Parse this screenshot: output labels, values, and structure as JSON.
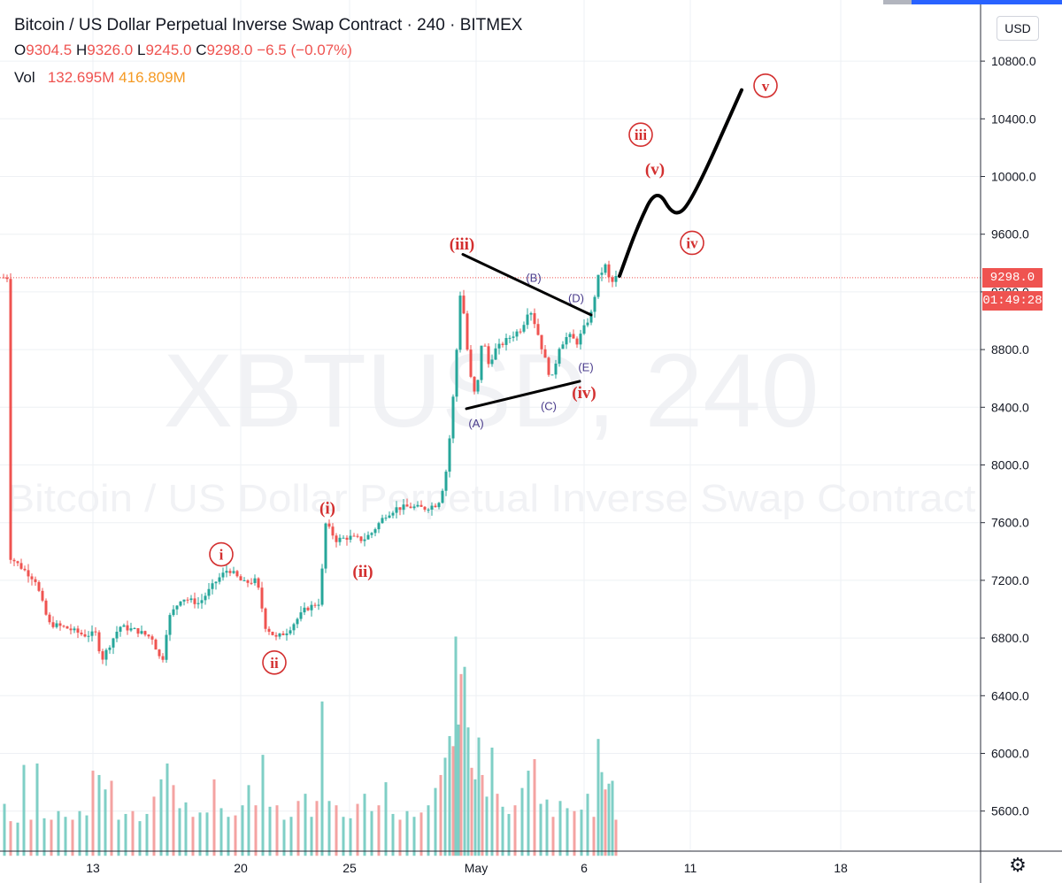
{
  "legend": {
    "title": "Bitcoin / US Dollar Perpetual Inverse Swap Contract · 240 · BITMEX",
    "o_label": "O",
    "o": "9304.5",
    "h_label": "H",
    "h": "9326.0",
    "l_label": "L",
    "l": "9245.0",
    "c_label": "C",
    "c": "9298.0",
    "change": "−6.5 (−0.07%)",
    "vol_label": "Vol",
    "vol": "132.695M",
    "vol_ma": "416.809M"
  },
  "currency_button": "USD",
  "last_price_tag": "9298.0",
  "countdown_tag": "01:49:28",
  "settings_icon": "gear-icon",
  "watermarks": {
    "symbol": "XBTUSD, 240",
    "description": "Bitcoin / US Dollar Perpetual Inverse Swap Contract"
  },
  "chart_data": {
    "type": "candlestick",
    "ylim": [
      5250,
      11000
    ],
    "y_ticks": [
      5600,
      6000,
      6400,
      6800,
      7200,
      7600,
      8000,
      8400,
      8800,
      9200,
      9600,
      10000,
      10400,
      10800
    ],
    "x_ticks": [
      "13",
      "20",
      "25",
      "May",
      "6",
      "11",
      "18"
    ],
    "colors": {
      "up": "#26a69a",
      "down": "#ef5350",
      "vol_up": "#7fcfc6",
      "vol_down": "#f4a3a2",
      "drawing": "#000000",
      "wave": "#d32f2f",
      "abcde": "#4a3c8c",
      "grid": "#eef0f4"
    },
    "last_price": 9298.0,
    "price_path": [
      [
        10,
        7370
      ],
      [
        40,
        7200
      ],
      [
        55,
        6900
      ],
      [
        75,
        6870
      ],
      [
        95,
        6820
      ],
      [
        108,
        6830
      ],
      [
        115,
        6650
      ],
      [
        135,
        6880
      ],
      [
        155,
        6850
      ],
      [
        172,
        6800
      ],
      [
        183,
        6620
      ],
      [
        190,
        6930
      ],
      [
        205,
        7080
      ],
      [
        225,
        7040
      ],
      [
        245,
        7200
      ],
      [
        258,
        7280
      ],
      [
        275,
        7180
      ],
      [
        290,
        7200
      ],
      [
        300,
        6880
      ],
      [
        312,
        6800
      ],
      [
        325,
        6850
      ],
      [
        345,
        7000
      ],
      [
        362,
        7050
      ],
      [
        367,
        7600
      ],
      [
        380,
        7480
      ],
      [
        395,
        7500
      ],
      [
        410,
        7480
      ],
      [
        420,
        7530
      ],
      [
        435,
        7650
      ],
      [
        448,
        7700
      ],
      [
        462,
        7710
      ],
      [
        480,
        7700
      ],
      [
        495,
        7730
      ],
      [
        503,
        7900
      ],
      [
        510,
        8300
      ],
      [
        516,
        8800
      ],
      [
        521,
        9280
      ],
      [
        526,
        8900
      ],
      [
        532,
        8600
      ],
      [
        538,
        8450
      ],
      [
        545,
        8900
      ],
      [
        552,
        8700
      ],
      [
        560,
        8800
      ],
      [
        575,
        8880
      ],
      [
        590,
        8950
      ],
      [
        598,
        9100
      ],
      [
        606,
        8950
      ],
      [
        615,
        8750
      ],
      [
        623,
        8580
      ],
      [
        632,
        8820
      ],
      [
        642,
        8900
      ],
      [
        652,
        8850
      ],
      [
        660,
        8950
      ],
      [
        668,
        9050
      ],
      [
        676,
        9300
      ],
      [
        684,
        9380
      ],
      [
        690,
        9250
      ],
      [
        696,
        9300
      ]
    ],
    "volume": [
      [
        5,
        5650
      ],
      [
        12,
        5530
      ],
      [
        20,
        5520
      ],
      [
        27,
        5920
      ],
      [
        35,
        5540
      ],
      [
        42,
        5930
      ],
      [
        50,
        5550
      ],
      [
        58,
        5540
      ],
      [
        66,
        5600
      ],
      [
        74,
        5560
      ],
      [
        82,
        5540
      ],
      [
        90,
        5600
      ],
      [
        98,
        5570
      ],
      [
        105,
        5880
      ],
      [
        112,
        5850
      ],
      [
        119,
        5750
      ],
      [
        126,
        5810
      ],
      [
        134,
        5540
      ],
      [
        142,
        5580
      ],
      [
        150,
        5600
      ],
      [
        158,
        5530
      ],
      [
        166,
        5580
      ],
      [
        174,
        5700
      ],
      [
        182,
        5820
      ],
      [
        189,
        5930
      ],
      [
        196,
        5780
      ],
      [
        203,
        5620
      ],
      [
        210,
        5660
      ],
      [
        218,
        5560
      ],
      [
        226,
        5590
      ],
      [
        234,
        5590
      ],
      [
        242,
        5820
      ],
      [
        250,
        5620
      ],
      [
        258,
        5560
      ],
      [
        266,
        5570
      ],
      [
        274,
        5640
      ],
      [
        281,
        5780
      ],
      [
        289,
        5640
      ],
      [
        297,
        5990
      ],
      [
        305,
        5630
      ],
      [
        313,
        5640
      ],
      [
        321,
        5540
      ],
      [
        329,
        5560
      ],
      [
        337,
        5670
      ],
      [
        345,
        5720
      ],
      [
        352,
        5560
      ],
      [
        358,
        5670
      ],
      [
        364,
        6360
      ],
      [
        372,
        5670
      ],
      [
        380,
        5640
      ],
      [
        388,
        5560
      ],
      [
        396,
        5550
      ],
      [
        404,
        5650
      ],
      [
        412,
        5720
      ],
      [
        420,
        5600
      ],
      [
        428,
        5640
      ],
      [
        436,
        5800
      ],
      [
        444,
        5580
      ],
      [
        452,
        5540
      ],
      [
        460,
        5600
      ],
      [
        468,
        5560
      ],
      [
        476,
        5590
      ],
      [
        484,
        5640
      ],
      [
        492,
        5760
      ],
      [
        498,
        5850
      ],
      [
        503,
        5970
      ],
      [
        508,
        6120
      ],
      [
        512,
        6050
      ],
      [
        515,
        6810
      ],
      [
        518,
        6200
      ],
      [
        521,
        6550
      ],
      [
        525,
        6600
      ],
      [
        529,
        6180
      ],
      [
        533,
        5900
      ],
      [
        537,
        5820
      ],
      [
        541,
        6110
      ],
      [
        545,
        5850
      ],
      [
        550,
        5700
      ],
      [
        556,
        6040
      ],
      [
        562,
        5720
      ],
      [
        568,
        5630
      ],
      [
        575,
        5580
      ],
      [
        582,
        5640
      ],
      [
        590,
        5760
      ],
      [
        597,
        5880
      ],
      [
        604,
        5960
      ],
      [
        611,
        5650
      ],
      [
        618,
        5680
      ],
      [
        625,
        5560
      ],
      [
        633,
        5670
      ],
      [
        641,
        5620
      ],
      [
        649,
        5600
      ],
      [
        657,
        5610
      ],
      [
        664,
        5720
      ],
      [
        671,
        5560
      ],
      [
        676,
        6100
      ],
      [
        680,
        5870
      ],
      [
        684,
        5750
      ],
      [
        688,
        5790
      ],
      [
        692,
        5810
      ],
      [
        696,
        5540
      ]
    ],
    "vol_floor": 5290,
    "drawings": {
      "triangle_upper": [
        [
          523,
          9460
        ],
        [
          668,
          9040
        ]
      ],
      "triangle_lower": [
        [
          527,
          8390
        ],
        [
          655,
          8580
        ]
      ],
      "projection": [
        [
          700,
          9310
        ],
        [
          720,
          9650
        ],
        [
          742,
          9930
        ],
        [
          762,
          9710
        ],
        [
          782,
          9830
        ],
        [
          838,
          10600
        ]
      ]
    },
    "wave_labels": [
      {
        "text": "i",
        "circled": true,
        "x": 250,
        "y": 7380
      },
      {
        "text": "ii",
        "circled": true,
        "x": 310,
        "y": 6630
      },
      {
        "text": "(i)",
        "circled": false,
        "x": 370,
        "y": 7700
      },
      {
        "text": "(ii)",
        "circled": false,
        "x": 410,
        "y": 7260
      },
      {
        "text": "(iii)",
        "circled": false,
        "x": 522,
        "y": 9530
      },
      {
        "text": "(iv)",
        "circled": false,
        "x": 660,
        "y": 8500
      },
      {
        "text": "iii",
        "circled": true,
        "x": 724,
        "y": 10290
      },
      {
        "text": "(v)",
        "circled": false,
        "x": 740,
        "y": 10050
      },
      {
        "text": "iv",
        "circled": true,
        "x": 782,
        "y": 9540
      },
      {
        "text": "v",
        "circled": true,
        "x": 865,
        "y": 10630
      }
    ],
    "abcde_labels": [
      {
        "text": "(A)",
        "x": 538,
        "y": 8290
      },
      {
        "text": "(B)",
        "x": 603,
        "y": 9300
      },
      {
        "text": "(C)",
        "x": 620,
        "y": 8410
      },
      {
        "text": "(D)",
        "x": 651,
        "y": 9160
      },
      {
        "text": "(E)",
        "x": 662,
        "y": 8680
      }
    ]
  }
}
